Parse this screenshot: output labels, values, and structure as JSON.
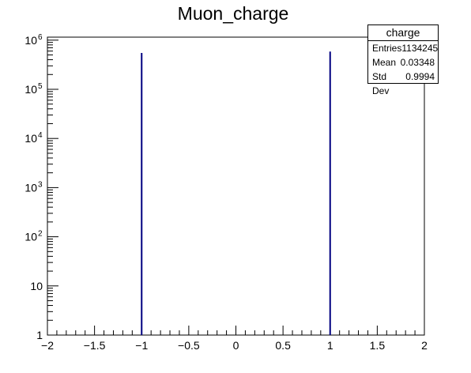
{
  "chart_data": {
    "type": "bar",
    "title": "Muon_charge",
    "xlabel": "",
    "ylabel": "",
    "xlim": [
      -2,
      2
    ],
    "ylim": [
      1,
      1000000
    ],
    "yscale": "log",
    "x_ticks": [
      "−2",
      "−1.5",
      "−1",
      "−0.5",
      "0",
      "0.5",
      "1",
      "1.5",
      "2"
    ],
    "y_ticks": [
      {
        "base": "1",
        "exp": ""
      },
      {
        "base": "10",
        "exp": ""
      },
      {
        "base": "10",
        "exp": "2"
      },
      {
        "base": "10",
        "exp": "3"
      },
      {
        "base": "10",
        "exp": "4"
      },
      {
        "base": "10",
        "exp": "5"
      },
      {
        "base": "10",
        "exp": "6"
      }
    ],
    "series": [
      {
        "x": [
          -1,
          1
        ],
        "values": [
          548000,
          586000
        ],
        "color": "#000080"
      }
    ],
    "grid": false
  },
  "stats": {
    "name": "charge",
    "rows": [
      {
        "label": "Entries",
        "value": "1134245"
      },
      {
        "label": "Mean",
        "value": "0.03348"
      },
      {
        "label": "Std Dev",
        "value": "0.9994"
      }
    ]
  }
}
